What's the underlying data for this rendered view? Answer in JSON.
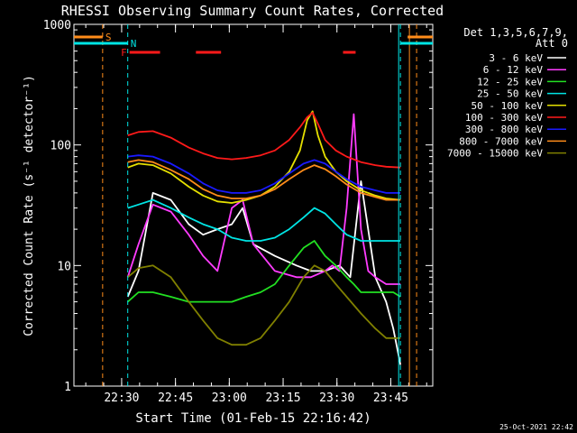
{
  "chart_data": {
    "type": "line",
    "title": "RHESSI Observing Summary Count Rates, Corrected",
    "xlabel": "Start Time (01-Feb-15 22:16:42)",
    "ylabel": "Corrected Count Rate (s⁻¹ detector⁻¹)",
    "yscale": "log",
    "ylim": [
      1,
      1000
    ],
    "xlim_minutes": [
      0,
      100
    ],
    "x_ticks": [
      {
        "label": "22:30",
        "minutes": 13.3
      },
      {
        "label": "22:45",
        "minutes": 28.3
      },
      {
        "label": "23:00",
        "minutes": 43.3
      },
      {
        "label": "23:15",
        "minutes": 58.3
      },
      {
        "label": "23:30",
        "minutes": 73.3
      },
      {
        "label": "23:45",
        "minutes": 88.3
      }
    ],
    "y_ticks": [
      {
        "label": "1",
        "value": 1
      },
      {
        "label": "10",
        "value": 10
      },
      {
        "label": "100",
        "value": 100
      },
      {
        "label": "1000",
        "value": 1000
      }
    ],
    "legend_header": [
      "Det 1,3,5,6,7,9,",
      "Att 0"
    ],
    "legend_placement": "top-right",
    "footer_timestamp": "25-Oct-2021 22:42",
    "flags": {
      "S": {
        "label": "S",
        "color": "#ff8c1a",
        "intervals": [
          [
            0,
            8
          ],
          [
            93,
            100
          ]
        ]
      },
      "N": {
        "label": "N",
        "color": "#00e5e5",
        "intervals": [
          [
            0,
            15
          ],
          [
            91,
            100
          ]
        ]
      },
      "F": {
        "label": "F",
        "color": "#ff1a1a",
        "intervals": [
          [
            15.5,
            24
          ],
          [
            34,
            41
          ],
          [
            75,
            78.5
          ]
        ]
      }
    },
    "markers": {
      "orange_dashed": [
        8,
        95.5
      ],
      "cyan_dashed": [
        15,
        91
      ],
      "orange_solid": [
        93.5
      ],
      "cyan_solid": [
        90.5
      ]
    },
    "series": [
      {
        "name": "3 - 6 keV",
        "color": "#ffffff",
        "x": [
          15,
          18,
          22,
          27,
          32,
          36,
          40,
          44,
          47,
          50,
          56,
          62,
          66,
          70,
          74,
          77,
          80,
          84,
          87,
          89,
          91
        ],
        "y": [
          5.5,
          9,
          40,
          35,
          22,
          18,
          20,
          22,
          30,
          15,
          12,
          10,
          9,
          9,
          10,
          8,
          50,
          8,
          5,
          3,
          1.5
        ]
      },
      {
        "name": "6 - 12 keV",
        "color": "#ff3cff",
        "x": [
          15,
          18,
          22,
          27,
          32,
          36,
          40,
          44,
          47,
          50,
          56,
          62,
          66,
          70,
          72,
          74,
          76,
          78,
          80,
          82,
          84,
          87,
          89,
          91
        ],
        "y": [
          8,
          15,
          32,
          28,
          18,
          12,
          9,
          30,
          35,
          15,
          9,
          8,
          8,
          9,
          10,
          9,
          30,
          180,
          20,
          9,
          8,
          7,
          7,
          7
        ]
      },
      {
        "name": "12 - 25 keV",
        "color": "#22e022",
        "x": [
          15,
          18,
          22,
          27,
          32,
          36,
          40,
          44,
          48,
          52,
          56,
          60,
          64,
          67,
          70,
          73,
          76,
          78,
          80,
          84,
          87,
          89,
          91
        ],
        "y": [
          5,
          6,
          6,
          5.5,
          5,
          5,
          5,
          5,
          5.5,
          6,
          7,
          10,
          14,
          16,
          12,
          10,
          8,
          7,
          6,
          6,
          6,
          6,
          5.5
        ]
      },
      {
        "name": "25 - 50 keV",
        "color": "#00e5e5",
        "x": [
          15,
          18,
          22,
          27,
          32,
          36,
          40,
          44,
          48,
          52,
          56,
          60,
          64,
          67,
          70,
          73,
          76,
          78,
          80,
          84,
          87,
          89,
          91
        ],
        "y": [
          30,
          32,
          35,
          30,
          25,
          22,
          20,
          17,
          16,
          16,
          17,
          20,
          25,
          30,
          27,
          22,
          18,
          17,
          16,
          16,
          16,
          16,
          16
        ]
      },
      {
        "name": "50 - 100 keV",
        "color": "#e5e000",
        "x": [
          15,
          18,
          22,
          27,
          32,
          36,
          40,
          44,
          48,
          52,
          56,
          60,
          63,
          65,
          66.5,
          68,
          70,
          73,
          76,
          80,
          84,
          87,
          91
        ],
        "y": [
          65,
          70,
          68,
          58,
          45,
          38,
          34,
          33,
          35,
          38,
          45,
          60,
          90,
          160,
          190,
          120,
          80,
          60,
          50,
          42,
          38,
          36,
          35
        ]
      },
      {
        "name": "100 - 300 keV",
        "color": "#ff1a1a",
        "x": [
          15,
          18,
          22,
          27,
          32,
          36,
          40,
          44,
          48,
          52,
          56,
          60,
          63,
          65,
          66.5,
          68,
          70,
          73,
          76,
          80,
          84,
          87,
          91
        ],
        "y": [
          120,
          128,
          130,
          115,
          95,
          85,
          78,
          76,
          78,
          82,
          90,
          110,
          140,
          170,
          185,
          150,
          110,
          90,
          80,
          72,
          68,
          66,
          65
        ]
      },
      {
        "name": "300 - 800 keV",
        "color": "#1a1aff",
        "x": [
          15,
          18,
          22,
          27,
          32,
          36,
          40,
          44,
          48,
          52,
          56,
          60,
          64,
          67,
          70,
          73,
          76,
          80,
          84,
          87,
          91
        ],
        "y": [
          80,
          82,
          80,
          70,
          58,
          48,
          42,
          40,
          40,
          42,
          48,
          58,
          70,
          75,
          70,
          60,
          52,
          45,
          42,
          40,
          40
        ]
      },
      {
        "name": "800 - 7000 keV",
        "color": "#ff8c1a",
        "x": [
          15,
          18,
          22,
          27,
          32,
          36,
          40,
          44,
          48,
          52,
          56,
          60,
          64,
          67,
          70,
          73,
          76,
          80,
          84,
          87,
          91
        ],
        "y": [
          72,
          75,
          72,
          62,
          52,
          43,
          38,
          36,
          36,
          38,
          43,
          52,
          62,
          68,
          63,
          55,
          47,
          40,
          37,
          35,
          35
        ]
      },
      {
        "name": "7000 - 15000 keV",
        "color": "#808000",
        "x": [
          15,
          18,
          22,
          27,
          32,
          36,
          40,
          44,
          48,
          52,
          56,
          60,
          64,
          67,
          70,
          73,
          76,
          80,
          84,
          87,
          89,
          91
        ],
        "y": [
          8,
          9.5,
          10,
          8,
          5,
          3.5,
          2.5,
          2.2,
          2.2,
          2.5,
          3.5,
          5,
          8,
          10,
          9,
          7,
          5.5,
          4,
          3,
          2.5,
          2.5,
          2.5
        ]
      }
    ]
  }
}
